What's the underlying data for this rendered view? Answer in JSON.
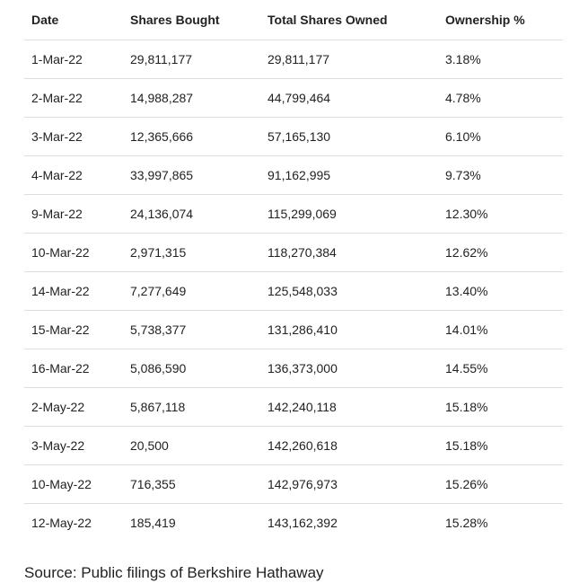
{
  "table": {
    "header": [
      "Date",
      "Shares Bought",
      "Total Shares Owned",
      "Ownership %"
    ],
    "rows": [
      [
        "1-Mar-22",
        "29,811,177",
        "29,811,177",
        "3.18%"
      ],
      [
        "2-Mar-22",
        "14,988,287",
        "44,799,464",
        "4.78%"
      ],
      [
        "3-Mar-22",
        "12,365,666",
        "57,165,130",
        "6.10%"
      ],
      [
        "4-Mar-22",
        "33,997,865",
        "91,162,995",
        "9.73%"
      ],
      [
        "9-Mar-22",
        "24,136,074",
        "115,299,069",
        "12.30%"
      ],
      [
        "10-Mar-22",
        "2,971,315",
        "118,270,384",
        "12.62%"
      ],
      [
        "14-Mar-22",
        "7,277,649",
        "125,548,033",
        "13.40%"
      ],
      [
        "15-Mar-22",
        "5,738,377",
        "131,286,410",
        "14.01%"
      ],
      [
        "16-Mar-22",
        "5,086,590",
        "136,373,000",
        "14.55%"
      ],
      [
        "2-May-22",
        "5,867,118",
        "142,240,118",
        "15.18%"
      ],
      [
        "3-May-22",
        "20,500",
        "142,260,618",
        "15.18%"
      ],
      [
        "10-May-22",
        "716,355",
        "142,976,973",
        "15.26%"
      ],
      [
        "12-May-22",
        "185,419",
        "143,162,392",
        "15.28%"
      ]
    ]
  },
  "source": "Source: Public filings of Berkshire Hathaway"
}
